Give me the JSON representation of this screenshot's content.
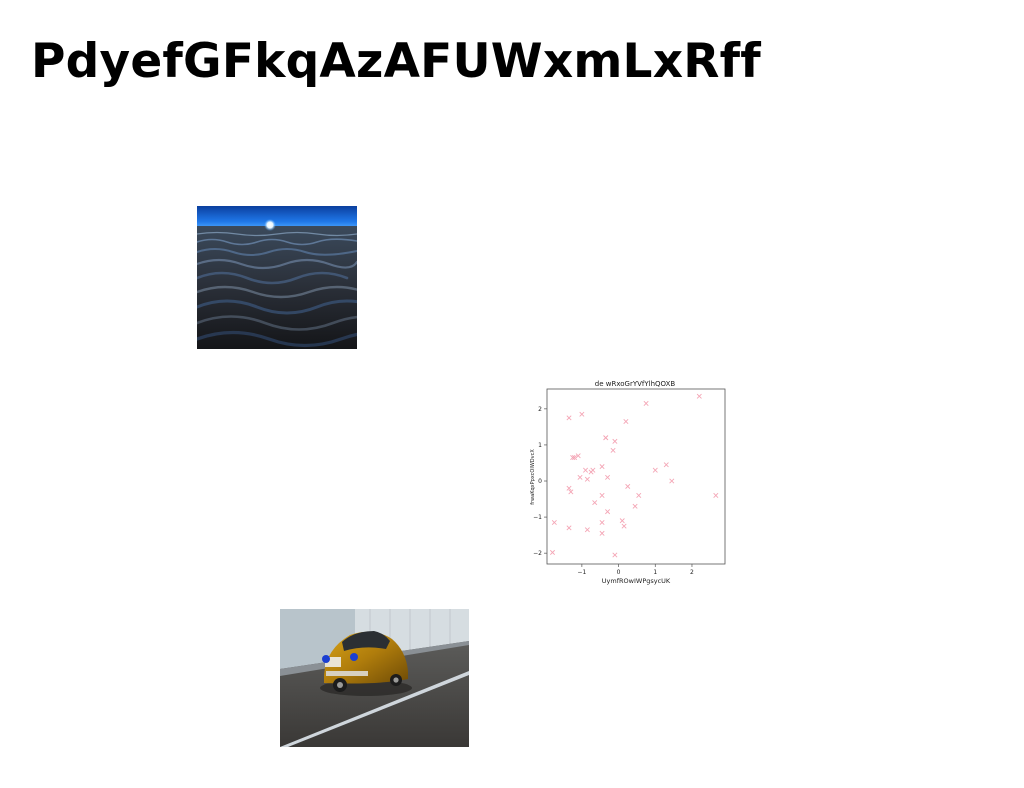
{
  "page": {
    "title": "PdyefGFkqAzAFUWxmLxRff"
  },
  "images": [
    {
      "name": "sea-at-night-photo"
    },
    {
      "name": "yellow-beetle-car-photo"
    }
  ],
  "chart_data": {
    "type": "scatter",
    "title": "de wRxoGrYVfYlhQOXB",
    "xlabel": "UymfROwIWPgsycUK",
    "ylabel": "frwaKqxPpxcOIWDvcX",
    "xlim": [
      -1.95,
      2.9
    ],
    "ylim": [
      -2.3,
      2.55
    ],
    "xticks": [
      -1,
      0,
      1,
      2
    ],
    "yticks": [
      -2,
      -1,
      0,
      1,
      2
    ],
    "marker": "x",
    "color": "#f4a6b6",
    "grid": false,
    "x": [
      2.2,
      0.75,
      -1.0,
      -1.35,
      0.2,
      -0.35,
      -0.35,
      -0.1,
      -1.2,
      -1.1,
      -1.25,
      -0.15,
      1.3,
      1.0,
      -0.9,
      -0.75,
      -0.45,
      -0.7,
      -1.05,
      -0.85,
      -0.3,
      1.45,
      -1.35,
      0.25,
      2.65,
      -1.3,
      -0.45,
      0.55,
      -0.65,
      0.45,
      -0.3,
      -0.45,
      0.1,
      0.15,
      -1.75,
      -0.85,
      -0.45,
      -1.35,
      -0.1,
      -1.8
    ],
    "y": [
      2.35,
      2.15,
      1.85,
      1.75,
      1.65,
      1.2,
      1.2,
      1.1,
      0.65,
      0.7,
      0.65,
      0.85,
      0.45,
      0.3,
      0.3,
      0.25,
      0.4,
      0.3,
      0.1,
      0.05,
      0.1,
      0.0,
      -0.2,
      -0.15,
      -0.4,
      -0.3,
      -0.4,
      -0.4,
      -0.6,
      -0.7,
      -0.85,
      -1.15,
      -1.1,
      -1.25,
      -1.15,
      -1.35,
      -1.45,
      -1.3,
      -2.05,
      -1.98
    ]
  }
}
